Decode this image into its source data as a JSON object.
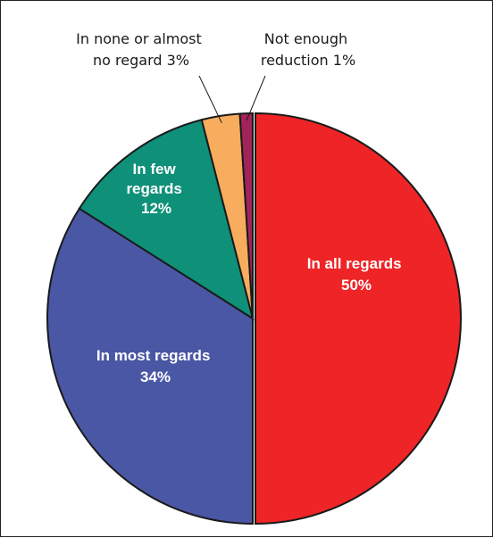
{
  "chart_data": {
    "type": "pie",
    "title": "",
    "legend": "none",
    "slices": [
      {
        "label": "In all regards",
        "pct_text": "50%",
        "value": 50,
        "color": "#ee2426",
        "placement": "inside"
      },
      {
        "label": "In most regards",
        "pct_text": "34%",
        "value": 34,
        "color": "#4a57a5",
        "placement": "inside"
      },
      {
        "label": "In few regards",
        "label_lines": [
          "In few",
          "regards"
        ],
        "pct_text": "12%",
        "value": 12,
        "color": "#0f9078",
        "placement": "inside"
      },
      {
        "label": "In none or almost no regard",
        "label_lines": [
          "In none or almost",
          "no regard 3%"
        ],
        "pct_text": "3%",
        "value": 3,
        "color": "#f8ad5e",
        "placement": "outside"
      },
      {
        "label": "Not enough reduction",
        "label_lines": [
          "Not enough",
          "reduction 1%"
        ],
        "pct_text": "1%",
        "value": 1,
        "color": "#a0245a",
        "placement": "outside"
      }
    ]
  }
}
